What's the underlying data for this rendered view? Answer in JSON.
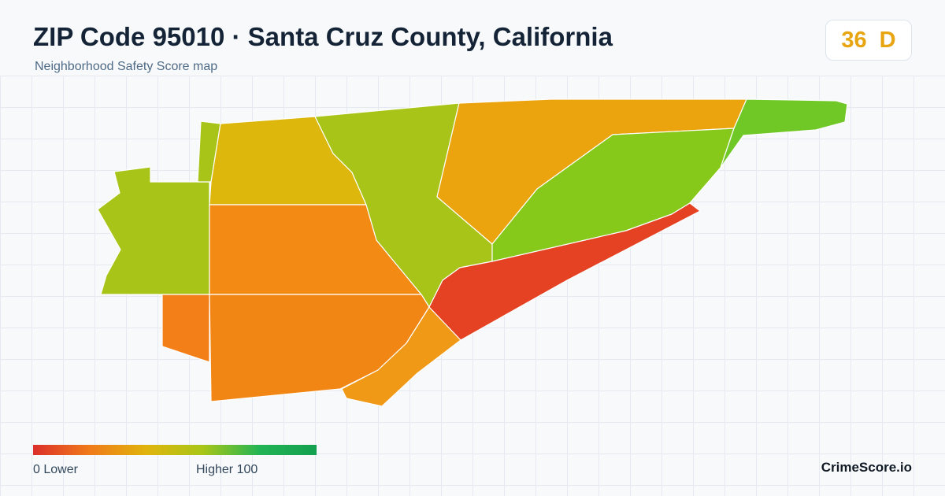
{
  "header": {
    "title": "ZIP Code 95010 · Santa Cruz County, California",
    "subtitle": "Neighborhood Safety Score map"
  },
  "score": {
    "value": "36",
    "grade": "D",
    "color": "#e8a512"
  },
  "legend": {
    "low_label": "0  Lower",
    "high_label": "Higher  100",
    "gradient_colors": [
      "#dc2f2a",
      "#f07b1a",
      "#e0b40c",
      "#a8c618",
      "#22b454",
      "#13a050"
    ]
  },
  "map": {
    "region_colors": {
      "west_green": "#a9c418",
      "north_yellow": "#ddb70b",
      "center_green": "#a8c418",
      "center_orange": "#f28a14",
      "southwest_orange": "#f27f18",
      "south_orange": "#f28614",
      "south_tip_orange": "#ef9917",
      "northeast_orange": "#eca40e",
      "east_lime": "#86c91a",
      "far_east_green": "#70c826",
      "coastal_red": "#e44222"
    }
  },
  "brand": {
    "name": "CrimeScore.io"
  }
}
